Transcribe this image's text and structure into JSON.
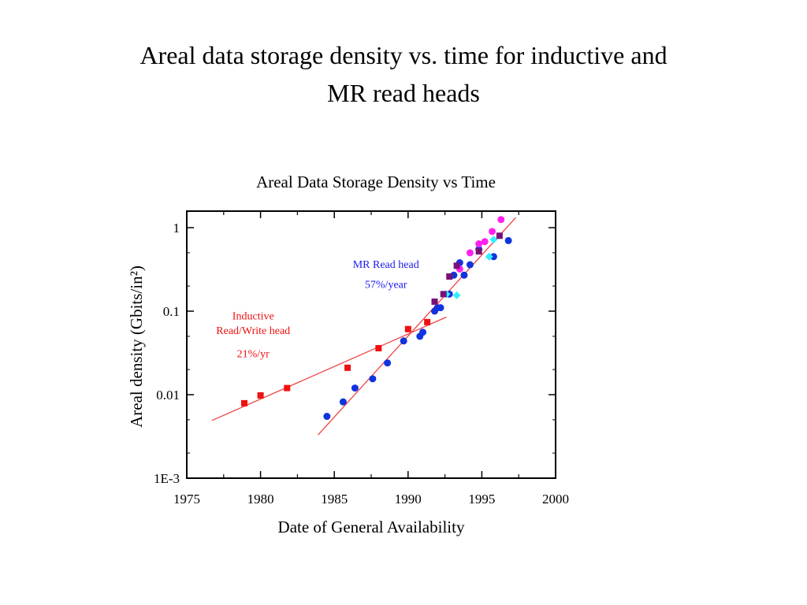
{
  "slide": {
    "title_line1": "Areal data storage density vs. time for inductive and",
    "title_line2": "MR read heads"
  },
  "chart_data": {
    "type": "scatter",
    "title": "Areal Data Storage Density vs Time",
    "xlabel": "Date of General Availability",
    "ylabel": "Areal density (Gbits/in²)",
    "xlim": [
      1975,
      2000
    ],
    "ylim": [
      0.001,
      2
    ],
    "yscale": "log",
    "x_ticks": [
      1975,
      1980,
      1985,
      1990,
      1995,
      2000
    ],
    "x_tick_labels": [
      "1975",
      "1980",
      "1985",
      "1990",
      "1995",
      "2000"
    ],
    "y_ticks": [
      0.001,
      0.01,
      0.1,
      1
    ],
    "y_tick_labels": [
      "1E-3",
      "0.01",
      "0.1",
      "1"
    ],
    "colors": {
      "inductive": "#ee1111",
      "mr": "#1133dd",
      "magenta": "#ff22ee",
      "cyan": "#33eeff",
      "purple": "#771177",
      "trend": "#ee4444"
    },
    "series": [
      {
        "marker": "square",
        "color": "#ee1111",
        "x": [
          1978.9,
          1980.0,
          1981.8,
          1985.9,
          1988.0,
          1990.0,
          1991.3
        ],
        "y": [
          0.0079,
          0.0098,
          0.012,
          0.021,
          0.036,
          0.061,
          0.074
        ]
      },
      {
        "marker": "circle",
        "color": "#1133dd",
        "x": [
          1984.5,
          1985.6,
          1986.4,
          1987.6,
          1988.6,
          1989.7,
          1990.8,
          1991.0,
          1991.8,
          1992.0,
          1992.2,
          1992.8,
          1993.1,
          1993.5,
          1993.8,
          1994.2,
          1994.8,
          1995.8,
          1996.8
        ],
        "y": [
          0.0055,
          0.0082,
          0.012,
          0.0155,
          0.024,
          0.044,
          0.05,
          0.056,
          0.1,
          0.11,
          0.11,
          0.16,
          0.27,
          0.38,
          0.27,
          0.36,
          0.55,
          0.45,
          0.7
        ]
      },
      {
        "marker": "circle",
        "color": "#ff22ee",
        "x": [
          1993.5,
          1994.2,
          1994.8,
          1995.2,
          1995.7,
          1996.3
        ],
        "y": [
          0.32,
          0.5,
          0.64,
          0.68,
          0.9,
          1.25
        ]
      },
      {
        "marker": "diamond",
        "color": "#33eeff",
        "x": [
          1992.6,
          1993.3,
          1995.5,
          1995.8
        ],
        "y": [
          0.16,
          0.155,
          0.45,
          0.72
        ]
      },
      {
        "marker": "square",
        "color": "#771177",
        "x": [
          1991.8,
          1992.4,
          1992.8,
          1993.3,
          1994.8,
          1996.2
        ],
        "y": [
          0.13,
          0.16,
          0.26,
          0.35,
          0.52,
          0.8
        ]
      }
    ],
    "trend_lines": [
      {
        "color": "#ee4444",
        "x": [
          1976.7,
          1992.6
        ],
        "y": [
          0.0049,
          0.085
        ]
      },
      {
        "color": "#ee4444",
        "x": [
          1983.9,
          1997.3
        ],
        "y": [
          0.0033,
          1.32
        ]
      }
    ],
    "annotations": [
      {
        "lines": [
          "MR Read head",
          "57%/year"
        ],
        "color": "#1a1aee",
        "x": 1988.5,
        "y": [
          0.33,
          0.19
        ]
      },
      {
        "lines": [
          "Inductive",
          "Read/Write head",
          "21%/yr"
        ],
        "color": "#ee1111",
        "x": 1979.5,
        "y": [
          0.08,
          0.053,
          0.028
        ]
      }
    ]
  }
}
